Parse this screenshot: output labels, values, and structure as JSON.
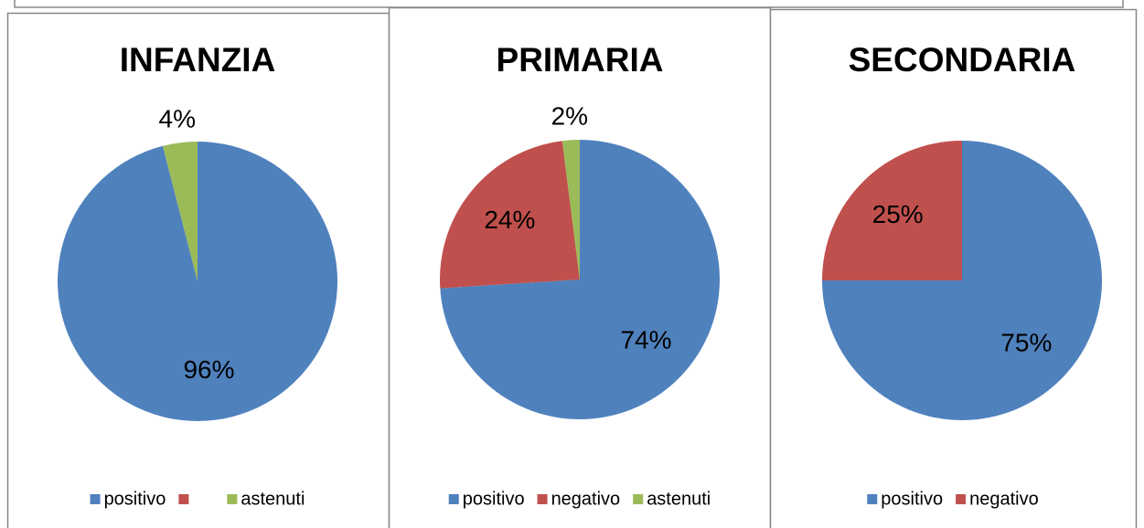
{
  "chart_data": [
    {
      "type": "pie",
      "title": "INFANZIA",
      "categories": [
        "positivo",
        null,
        "astenuti"
      ],
      "values": [
        96,
        0,
        4
      ],
      "value_labels": [
        "96%",
        null,
        "4%"
      ],
      "colors": [
        "#4f81bd",
        "#c0504d",
        "#9bbb59"
      ]
    },
    {
      "type": "pie",
      "title": "PRIMARIA",
      "categories": [
        "positivo",
        "negativo",
        "astenuti"
      ],
      "values": [
        74,
        24,
        2
      ],
      "value_labels": [
        "74%",
        "24%",
        "2%"
      ],
      "colors": [
        "#4f81bd",
        "#c0504d",
        "#9bbb59"
      ]
    },
    {
      "type": "pie",
      "title": "SECONDARIA",
      "categories": [
        "positivo",
        "negativo"
      ],
      "values": [
        75,
        25
      ],
      "value_labels": [
        "75%",
        "25%"
      ],
      "colors": [
        "#4f81bd",
        "#c0504d"
      ]
    }
  ]
}
